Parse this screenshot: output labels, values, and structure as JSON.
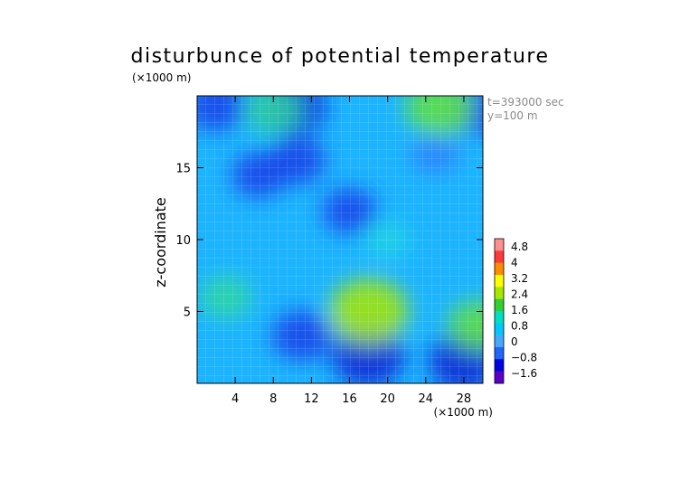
{
  "chart_data": {
    "type": "heatmap",
    "title": "disturbunce of potential temperature",
    "xlabel": "",
    "ylabel": "z-coordinate",
    "x_unit_label": "(×1000 m)",
    "y_unit_label": "(×1000 m)",
    "annotation_time": "t=393000 sec",
    "annotation_y": "y=100 m",
    "xlim": [
      0,
      30
    ],
    "ylim": [
      0,
      20
    ],
    "x_ticks": [
      4,
      8,
      12,
      16,
      20,
      24,
      28
    ],
    "y_ticks": [
      5,
      10,
      15
    ],
    "grid": true,
    "colorbar": {
      "labels": [
        "4.8",
        "4",
        "3.2",
        "2.4",
        "1.6",
        "0.8",
        "0",
        "−0.8",
        "−1.6"
      ],
      "colors": [
        "#ff9090",
        "#ff3a3a",
        "#ff8c00",
        "#ffff00",
        "#a8e800",
        "#30d030",
        "#00e0c0",
        "#00c8ff",
        "#44aaff",
        "#1e66ff",
        "#0000e0",
        "#5a00c8"
      ]
    },
    "field_features": [
      {
        "x": 10,
        "z": 19.2,
        "value": -1.2
      },
      {
        "x": 2,
        "z": 19.3,
        "value": -1.0
      },
      {
        "x": 30,
        "z": 19.0,
        "value": -1.0
      },
      {
        "x": 10.5,
        "z": 15.5,
        "value": -0.9
      },
      {
        "x": 6.5,
        "z": 14.5,
        "value": -0.8
      },
      {
        "x": 18,
        "z": 1.9,
        "value": -1.4
      },
      {
        "x": 28,
        "z": 1.5,
        "value": -1.3
      },
      {
        "x": 11,
        "z": 3.3,
        "value": -1.0
      },
      {
        "x": 16,
        "z": 12.0,
        "value": -0.8
      },
      {
        "x": 25,
        "z": 16.0,
        "value": -0.6
      },
      {
        "x": 18,
        "z": 5.0,
        "value": 1.6
      },
      {
        "x": 25.5,
        "z": 19.2,
        "value": 1.3
      },
      {
        "x": 8,
        "z": 19.0,
        "value": 0.9
      },
      {
        "x": 29.5,
        "z": 4.0,
        "value": 1.0
      },
      {
        "x": 3,
        "z": 6.0,
        "value": 0.7
      },
      {
        "x": 20,
        "z": 10.0,
        "value": 0.4
      }
    ]
  }
}
